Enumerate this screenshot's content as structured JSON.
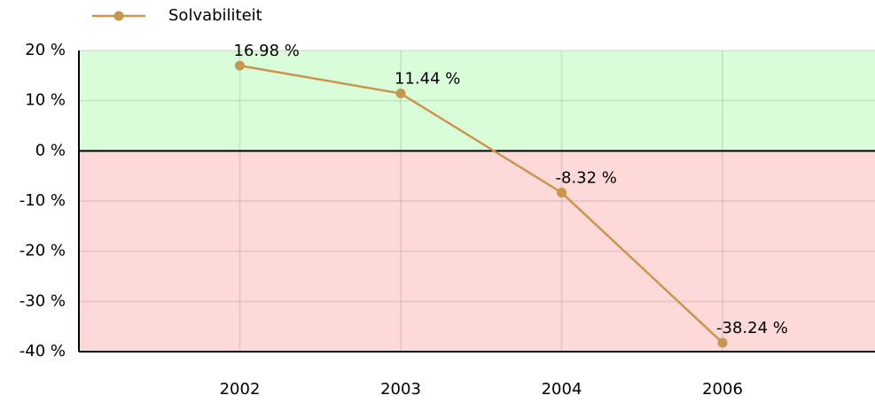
{
  "chart_data": {
    "type": "line",
    "categories": [
      "2002",
      "2003",
      "2004",
      "2006"
    ],
    "series": [
      {
        "name": "Solvabiliteit",
        "color": "#c9964b",
        "values": [
          16.98,
          11.44,
          -8.32,
          -38.24
        ],
        "value_labels": [
          "16.98 %",
          "11.44 %",
          "-8.32 %",
          "-38.24 %"
        ]
      }
    ],
    "ylim": [
      -40,
      20
    ],
    "yticks": [
      {
        "value": 20,
        "label": "20 %"
      },
      {
        "value": 10,
        "label": "10 %"
      },
      {
        "value": 0,
        "label": "0 %"
      },
      {
        "value": -10,
        "label": "-10 %"
      },
      {
        "value": -20,
        "label": "-20 %"
      },
      {
        "value": -30,
        "label": "-30 %"
      },
      {
        "value": -40,
        "label": "-40 %"
      }
    ],
    "grid": true,
    "legend": "top-left",
    "background": {
      "above": "#d9fdd9",
      "below": "#fdd9d9"
    }
  }
}
